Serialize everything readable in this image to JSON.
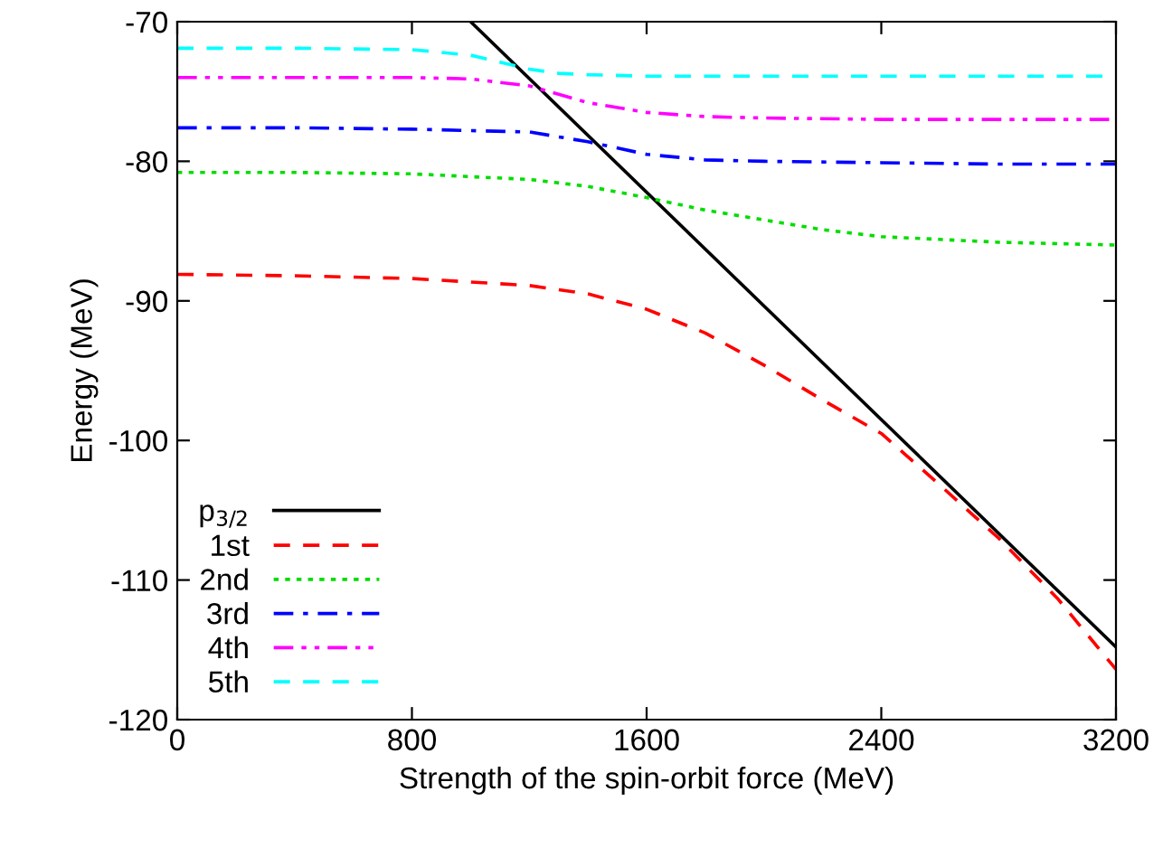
{
  "chart_data": {
    "type": "line",
    "xlabel": "Strength of the spin-orbit force (MeV)",
    "ylabel": "Energy (MeV)",
    "xlim": [
      0,
      3200
    ],
    "ylim": [
      -120,
      -70
    ],
    "xticks": [
      0,
      800,
      1600,
      2400,
      3200
    ],
    "yticks": [
      -120,
      -110,
      -100,
      -90,
      -80,
      -70
    ],
    "grid": false,
    "legend": "bottom left",
    "marker": "none",
    "series": [
      {
        "name": "p$_{3/2}$",
        "color": "#000000",
        "line_style": "solid",
        "x": [
          1000,
          3200
        ],
        "values": [
          -70,
          -114.8
        ]
      },
      {
        "name": "1st",
        "color": "#ff0000",
        "line_style": "dashed",
        "x": [
          0,
          400,
          800,
          1200,
          1400,
          1600,
          1800,
          2000,
          2200,
          2400,
          2600,
          2800,
          3000,
          3200
        ],
        "values": [
          -88.1,
          -88.2,
          -88.4,
          -88.9,
          -89.5,
          -90.6,
          -92.3,
          -94.6,
          -97.1,
          -99.5,
          -103.2,
          -107.0,
          -111.3,
          -116.4
        ]
      },
      {
        "name": "2nd",
        "color": "#00dd00",
        "line_style": "dotted",
        "x": [
          0,
          400,
          800,
          1200,
          1400,
          1600,
          1800,
          2000,
          2200,
          2400,
          2800,
          3200
        ],
        "values": [
          -80.8,
          -80.8,
          -80.9,
          -81.3,
          -81.8,
          -82.6,
          -83.5,
          -84.2,
          -84.9,
          -85.4,
          -85.8,
          -86.0
        ]
      },
      {
        "name": "3rd",
        "color": "#0000ff",
        "line_style": "dashdot",
        "x": [
          0,
          400,
          800,
          1200,
          1400,
          1600,
          1800,
          2000,
          2400,
          2800,
          3200
        ],
        "values": [
          -77.6,
          -77.6,
          -77.7,
          -77.9,
          -78.6,
          -79.5,
          -79.9,
          -80.0,
          -80.1,
          -80.2,
          -80.2
        ]
      },
      {
        "name": "4th",
        "color": "#ff00ff",
        "line_style": "dashdotdot",
        "x": [
          0,
          400,
          800,
          1000,
          1200,
          1300,
          1400,
          1600,
          1800,
          2000,
          2400,
          3200
        ],
        "values": [
          -74.0,
          -74.0,
          -74.0,
          -74.1,
          -74.6,
          -75.2,
          -75.8,
          -76.5,
          -76.8,
          -76.9,
          -77.0,
          -77.0
        ]
      },
      {
        "name": "5th",
        "color": "#00ffff",
        "line_style": "dashed",
        "x": [
          0,
          400,
          800,
          1000,
          1100,
          1200,
          1300,
          1400,
          1600,
          2000,
          3200
        ],
        "values": [
          -71.9,
          -71.9,
          -72.0,
          -72.4,
          -72.9,
          -73.4,
          -73.7,
          -73.8,
          -73.9,
          -73.9,
          -73.9
        ]
      }
    ]
  }
}
